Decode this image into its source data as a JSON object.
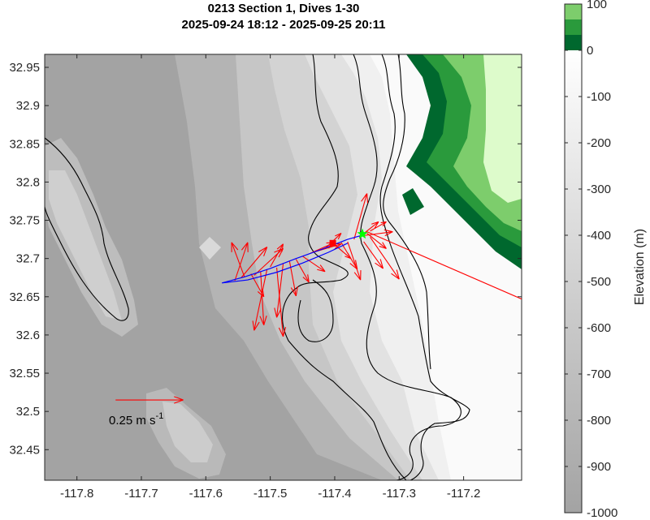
{
  "chart_data": {
    "type": "map",
    "title_line1": "0213 Section 1, Dives 1-30",
    "title_line2": "2025-09-24 18:12 - 2025-09-25 20:11",
    "xlim": [
      -117.85,
      -117.11
    ],
    "ylim": [
      32.41,
      32.967
    ],
    "x_ticks": [
      -117.8,
      -117.7,
      -117.6,
      -117.5,
      -117.4,
      -117.3,
      -117.2
    ],
    "x_tick_labels": [
      "-117.8",
      "-117.7",
      "-117.6",
      "-117.5",
      "-117.4",
      "-117.3",
      "-117.2"
    ],
    "y_ticks": [
      32.45,
      32.5,
      32.55,
      32.6,
      32.65,
      32.7,
      32.75,
      32.8,
      32.85,
      32.9,
      32.95
    ],
    "y_tick_labels": [
      "32.45",
      "32.5",
      "32.55",
      "32.6",
      "32.65",
      "32.7",
      "32.75",
      "32.8",
      "32.85",
      "32.9",
      "32.95"
    ],
    "colorbar": {
      "label": "Elevation (m)",
      "range": [
        -1000,
        100
      ],
      "ticks": [
        100,
        0,
        -100,
        -200,
        -300,
        -400,
        -500,
        -600,
        -700,
        -800,
        -900,
        -1000
      ],
      "tick_labels": [
        "100",
        "0",
        "-100",
        "-200",
        "-300",
        "-400",
        "-500",
        "-600",
        "-700",
        "-800",
        "-900",
        "-1000"
      ],
      "ocean_color_deep": "#a3a3a3",
      "ocean_color_shallow": "#ffffff",
      "land_colors": [
        "#00682e",
        "#2a9a3c",
        "#7dcd6c"
      ]
    },
    "reference_vector": {
      "label_main": "0.25 m s",
      "label_exp": "-1",
      "lon": -117.74,
      "lat": 32.515,
      "dlon": 0.105,
      "color": "#ff0000"
    },
    "track": {
      "color": "#0000ff",
      "points": [
        [
          -117.355,
          32.731
        ],
        [
          -117.38,
          32.725
        ],
        [
          -117.42,
          32.712
        ],
        [
          -117.46,
          32.7
        ],
        [
          -117.5,
          32.687
        ],
        [
          -117.54,
          32.676
        ],
        [
          -117.575,
          32.668
        ],
        [
          -117.535,
          32.672
        ],
        [
          -117.49,
          32.682
        ],
        [
          -117.45,
          32.694
        ],
        [
          -117.41,
          32.708
        ],
        [
          -117.38,
          32.72
        ]
      ]
    },
    "start_marker": {
      "lon": -117.403,
      "lat": 32.72,
      "color": "#ff0000"
    },
    "end_marker": {
      "lon": -117.357,
      "lat": 32.732,
      "color": "#00ff00"
    },
    "current_vectors": {
      "color": "#ff0000",
      "vectors": [
        [
          -117.555,
          32.671,
          0.02,
          0.05
        ],
        [
          -117.545,
          32.675,
          0.04,
          0.04
        ],
        [
          -117.54,
          32.676,
          -0.02,
          0.045
        ],
        [
          -117.53,
          32.68,
          0.02,
          -0.03
        ],
        [
          -117.525,
          32.678,
          0.045,
          0.035
        ],
        [
          -117.515,
          32.683,
          0.005,
          -0.07
        ],
        [
          -117.505,
          32.686,
          -0.02,
          -0.08
        ],
        [
          -117.5,
          32.689,
          0.02,
          0.03
        ],
        [
          -117.49,
          32.688,
          0.01,
          -0.09
        ],
        [
          -117.48,
          32.693,
          -0.01,
          -0.07
        ],
        [
          -117.47,
          32.696,
          0.01,
          -0.045
        ],
        [
          -117.46,
          32.699,
          0.02,
          -0.03
        ],
        [
          -117.45,
          32.703,
          0.035,
          -0.02
        ],
        [
          -117.44,
          32.706,
          0.04,
          0.015
        ],
        [
          -117.43,
          32.709,
          0.04,
          0.01
        ],
        [
          -117.415,
          32.713,
          0.025,
          0.02
        ],
        [
          -117.4,
          32.718,
          0.025,
          -0.018
        ],
        [
          -117.39,
          32.721,
          0.025,
          -0.035
        ],
        [
          -117.38,
          32.722,
          0.02,
          -0.05
        ],
        [
          -117.37,
          32.725,
          0.02,
          0.06
        ],
        [
          -117.362,
          32.728,
          0.03,
          0.02
        ],
        [
          -117.355,
          32.73,
          0.045,
          0.005
        ],
        [
          -117.35,
          32.733,
          0.03,
          -0.02
        ],
        [
          -117.345,
          32.728,
          0.045,
          -0.055
        ],
        [
          -117.355,
          32.722,
          0.03,
          -0.035
        ],
        [
          -117.345,
          32.736,
          0.025,
          0.012
        ],
        [
          -117.35,
          32.735,
          0.3,
          -0.11
        ]
      ]
    }
  }
}
